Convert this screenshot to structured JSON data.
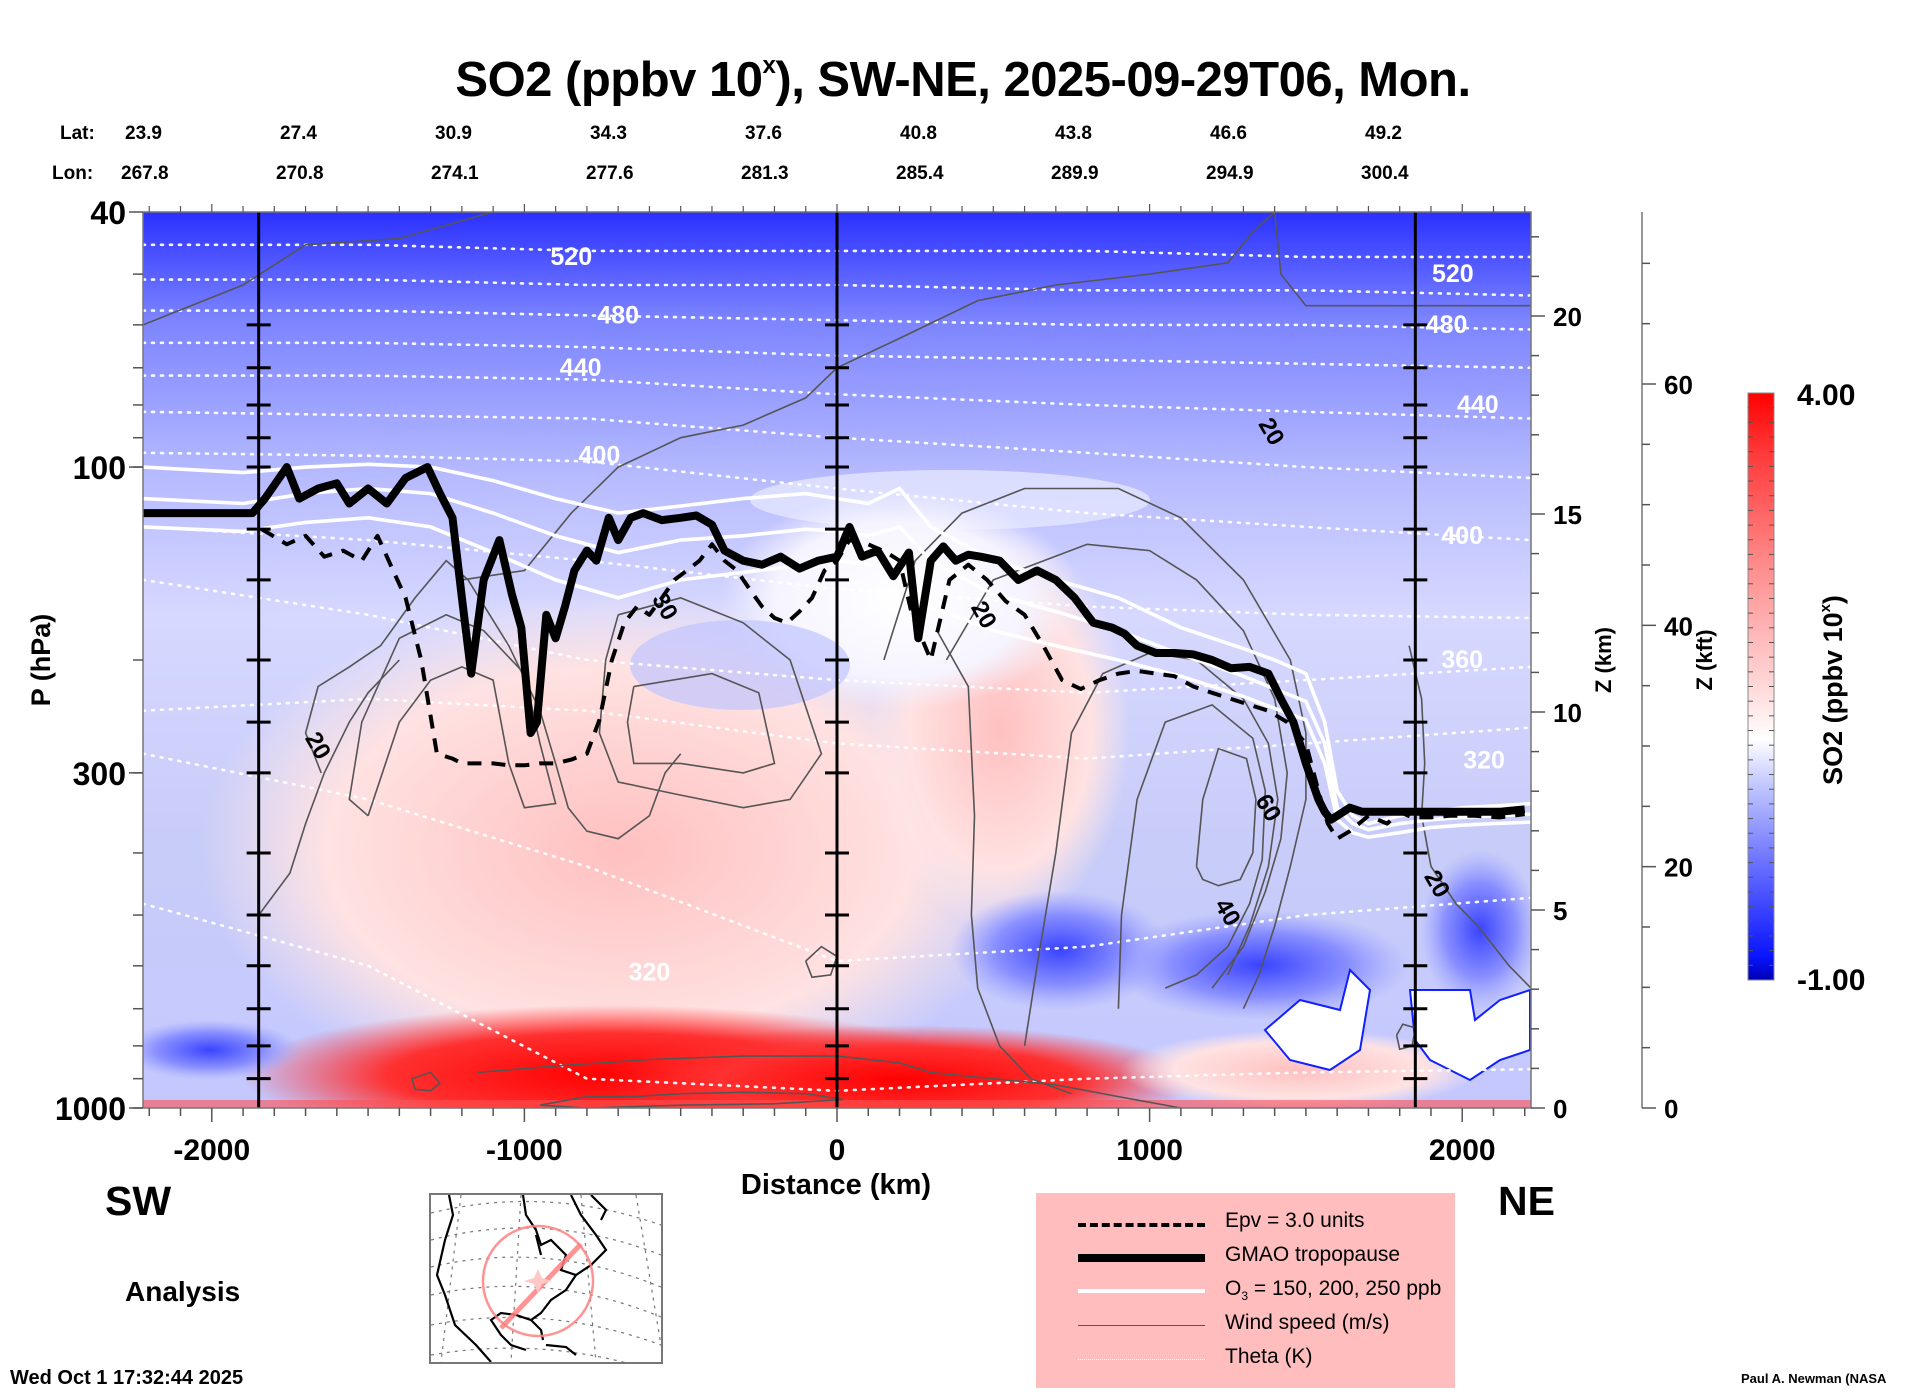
{
  "title": {
    "main": "SO2 (ppbv 10",
    "superscript": "x",
    "rest": "), SW-NE, 2025-09-29T06, Mon."
  },
  "header_rows": {
    "lat_label": "Lat:",
    "lon_label": "Lon:",
    "lat": [
      "23.9",
      "27.4",
      "30.9",
      "34.3",
      "37.6",
      "40.8",
      "43.8",
      "46.6",
      "49.2"
    ],
    "lon": [
      "267.8",
      "270.8",
      "274.1",
      "277.6",
      "281.3",
      "285.4",
      "289.9",
      "294.9",
      "300.4"
    ]
  },
  "labels": {
    "sw": "SW",
    "ne": "NE",
    "analysis": "Analysis",
    "timestamp": "Wed Oct  1 17:32:44 2025",
    "credit": "Paul A. Newman (NASA"
  },
  "legend": {
    "items": [
      {
        "label": "Epv = 3.0 units",
        "style": "dashed-thick"
      },
      {
        "label": "GMAO tropopause",
        "style": "solid-thick"
      },
      {
        "label_main": "O",
        "label_sub": "3",
        "label_rest": " = 150, 200, 250 ppb",
        "style": "white-solid"
      },
      {
        "label": "Wind speed (m/s)",
        "style": "thin-gray"
      },
      {
        "label": "Theta (K)",
        "style": "white-dotted"
      }
    ]
  },
  "colors": {
    "legend_bg": "#ffbdbd",
    "cmap_low": "#0000c8",
    "cmap_mid": "#ffffff",
    "cmap_high": "#ff0000",
    "map_track": "#ff8080"
  },
  "chart_data": {
    "type": "heatmap",
    "subtype": "vertical cross-section",
    "title": "SO2 (ppbv 10^x), SW-NE, 2025-09-29T06, Mon.",
    "xlabel": "Distance (km)",
    "ylabel": "P (hPa)",
    "ylabel_right": "Z (km)",
    "ylabel_right2": "Z (kft)",
    "xlim": [
      -2220,
      2220
    ],
    "ylim": [
      1000,
      40
    ],
    "yscale": "log",
    "x_ticks": [
      -2000,
      -1000,
      0,
      1000,
      2000
    ],
    "x_tick_labels": [
      "-2000",
      "-1000",
      "0",
      "1000",
      "2000"
    ],
    "y_ticks": [
      40,
      100,
      300,
      1000
    ],
    "y_tick_labels": [
      "40",
      "100",
      "300",
      "1000"
    ],
    "z_km_ticks": [
      0,
      5,
      10,
      15,
      20
    ],
    "z_km_tick_labels": [
      "0",
      "5",
      "10",
      "15",
      "20"
    ],
    "z_kft_ticks": [
      0,
      20,
      40,
      60
    ],
    "z_kft_tick_labels": [
      "0",
      "20",
      "40",
      "60"
    ],
    "vertical_markers_km": [
      -1850,
      0,
      1850
    ],
    "colorbar": {
      "label": "SO2 (ppbv 10^x)",
      "label_main": "SO2 (ppbv 10",
      "label_sup": "x",
      "label_end": ")",
      "min": -1.0,
      "max": 4.0,
      "min_label": "-1.00",
      "max_label": "4.00",
      "levels": 40
    },
    "field_regions": [
      {
        "desc": "upper stratosphere",
        "x": [
          -2220,
          2220
        ],
        "p": [
          40,
          90
        ],
        "value": -0.6
      },
      {
        "desc": "boundary-layer maximum",
        "x": [
          -1500,
          600
        ],
        "p": [
          850,
          1000
        ],
        "value": 3.6
      },
      {
        "desc": "mid-troposphere plume",
        "x": [
          -1100,
          300
        ],
        "p": [
          300,
          800
        ],
        "value": 2.0
      },
      {
        "desc": "NE low-level minimum",
        "x": [
          600,
          1700
        ],
        "p": [
          550,
          800
        ],
        "value": -0.7
      }
    ],
    "theta_labels": [
      {
        "value": "520",
        "x": -850,
        "p": 47
      },
      {
        "value": "480",
        "x": -700,
        "p": 58
      },
      {
        "value": "440",
        "x": -820,
        "p": 70
      },
      {
        "value": "400",
        "x": -760,
        "p": 96
      },
      {
        "value": "520",
        "x": 1970,
        "p": 50
      },
      {
        "value": "480",
        "x": 1950,
        "p": 60
      },
      {
        "value": "440",
        "x": 2050,
        "p": 80
      },
      {
        "value": "400",
        "x": 2000,
        "p": 128
      },
      {
        "value": "360",
        "x": 2000,
        "p": 200
      },
      {
        "value": "320",
        "x": 2070,
        "p": 287
      },
      {
        "value": "320",
        "x": -600,
        "p": 615
      }
    ],
    "wind_labels": [
      {
        "value": "20",
        "x": -1660,
        "p": 272
      },
      {
        "value": "20",
        "x": 1390,
        "p": 88
      },
      {
        "value": "20",
        "x": 470,
        "p": 170
      },
      {
        "value": "60",
        "x": 1380,
        "p": 340
      },
      {
        "value": "40",
        "x": 1250,
        "p": 495
      },
      {
        "value": "20",
        "x": 1920,
        "p": 447
      },
      {
        "value": "30",
        "x": -550,
        "p": 165
      }
    ],
    "tropopause": {
      "x": [
        -2220,
        -1870,
        -1830,
        -1760,
        -1720,
        -1660,
        -1600,
        -1560,
        -1500,
        -1440,
        -1380,
        -1310,
        -1270,
        -1230,
        -1200,
        -1170,
        -1130,
        -1080,
        -1040,
        -1010,
        -980,
        -960,
        -930,
        -900,
        -870,
        -840,
        -800,
        -770,
        -730,
        -700,
        -660,
        -620,
        -560,
        -500,
        -450,
        -400,
        -360,
        -300,
        -240,
        -180,
        -120,
        -60,
        0,
        40,
        80,
        130,
        180,
        230,
        260,
        300,
        340,
        380,
        420,
        460,
        520,
        580,
        640,
        700,
        760,
        820,
        880,
        920,
        960,
        1020,
        1080,
        1140,
        1200,
        1260,
        1320,
        1380,
        1420,
        1460,
        1500,
        1540,
        1560,
        1580,
        1600,
        1640,
        1680,
        1720,
        1760,
        1800,
        1850,
        1900,
        1960,
        2040,
        2120,
        2200
      ],
      "p": [
        118,
        118,
        112,
        100,
        112,
        108,
        106,
        114,
        108,
        114,
        104,
        100,
        110,
        120,
        160,
        210,
        150,
        130,
        158,
        178,
        260,
        250,
        170,
        185,
        165,
        145,
        135,
        140,
        120,
        130,
        120,
        118,
        121,
        120,
        119,
        123,
        135,
        140,
        142,
        138,
        144,
        140,
        138,
        124,
        138,
        135,
        148,
        136,
        185,
        140,
        133,
        140,
        137,
        138,
        140,
        150,
        145,
        150,
        160,
        175,
        178,
        182,
        190,
        195,
        195,
        196,
        200,
        206,
        205,
        210,
        230,
        250,
        290,
        330,
        345,
        355,
        350,
        340,
        345,
        345,
        345,
        345,
        345,
        345,
        345,
        345,
        345,
        342
      ]
    },
    "epv_3pvu": {
      "x": [
        -1840,
        -1760,
        -1700,
        -1640,
        -1580,
        -1520,
        -1470,
        -1420,
        -1380,
        -1330,
        -1280,
        -1230,
        -1200,
        -1180,
        -1160,
        -1140,
        -1100,
        -1050,
        -1000,
        -950,
        -900,
        -850,
        -800,
        -760,
        -720,
        -680,
        -640,
        -600,
        -560,
        -520,
        -480,
        -440,
        -400,
        -360,
        -320,
        -280,
        -240,
        -200,
        -160,
        -120,
        -80,
        -40,
        0,
        40,
        100,
        160,
        200,
        240,
        300,
        360,
        420,
        480,
        540,
        600,
        660,
        720,
        780,
        840,
        900,
        960,
        1020,
        1080,
        1140,
        1200,
        1260,
        1320,
        1380,
        1440,
        1500,
        1540,
        1570,
        1600,
        1640,
        1700,
        1760,
        1800,
        1840,
        1900,
        1960,
        2040,
        2120,
        2200
      ],
      "p": [
        125,
        132,
        128,
        138,
        135,
        140,
        128,
        145,
        160,
        200,
        280,
        285,
        290,
        290,
        290,
        290,
        290,
        292,
        292,
        290,
        290,
        286,
        280,
        248,
        200,
        175,
        165,
        170,
        160,
        150,
        145,
        140,
        132,
        140,
        145,
        155,
        165,
        172,
        175,
        168,
        160,
        145,
        140,
        130,
        132,
        136,
        140,
        170,
        200,
        150,
        142,
        150,
        162,
        170,
        190,
        215,
        222,
        215,
        210,
        208,
        210,
        212,
        220,
        225,
        230,
        235,
        240,
        250,
        270,
        320,
        360,
        380,
        370,
        350,
        360,
        345,
        352,
        352,
        350,
        350,
        352,
        348
      ]
    },
    "o3_contours": [
      {
        "ppb": 150,
        "x": [
          -2220,
          -1900,
          -1700,
          -1500,
          -1300,
          -1100,
          -900,
          -700,
          -500,
          -300,
          -100,
          0,
          100,
          200,
          300,
          500,
          700,
          900,
          1100,
          1300,
          1400,
          1500,
          1560,
          1600,
          1650,
          1700,
          1800,
          1900,
          2000,
          2100,
          2220
        ],
        "p": [
          100,
          102,
          100,
          99,
          100,
          105,
          112,
          118,
          115,
          112,
          110,
          112,
          114,
          108,
          124,
          140,
          150,
          160,
          178,
          192,
          200,
          210,
          250,
          320,
          350,
          360,
          350,
          345,
          340,
          338,
          335
        ]
      },
      {
        "ppb": 200,
        "x": [
          -2220,
          -1900,
          -1700,
          -1500,
          -1300,
          -1100,
          -900,
          -700,
          -500,
          -300,
          -100,
          0,
          100,
          200,
          300,
          500,
          700,
          900,
          1100,
          1300,
          1400,
          1500,
          1560,
          1600,
          1650,
          1700,
          1800,
          1900,
          2000,
          2100,
          2220
        ],
        "p": [
          112,
          114,
          110,
          108,
          110,
          118,
          128,
          136,
          130,
          128,
          125,
          126,
          128,
          124,
          140,
          158,
          168,
          180,
          196,
          212,
          222,
          232,
          270,
          340,
          360,
          368,
          360,
          355,
          352,
          350,
          348
        ]
      },
      {
        "ppb": 250,
        "x": [
          -2220,
          -1900,
          -1700,
          -1500,
          -1300,
          -1100,
          -900,
          -700,
          -500,
          -300,
          -100,
          0,
          100,
          200,
          300,
          500,
          700,
          900,
          1100,
          1300,
          1400,
          1500,
          1560,
          1600,
          1650,
          1700,
          1800,
          1900,
          2000,
          2100,
          2220
        ],
        "p": [
          124,
          126,
          122,
          120,
          124,
          136,
          150,
          160,
          150,
          146,
          142,
          140,
          142,
          145,
          165,
          180,
          190,
          200,
          212,
          228,
          238,
          248,
          290,
          355,
          372,
          378,
          372,
          365,
          362,
          360,
          358
        ]
      }
    ],
    "theta_levels_K": [
      300,
      320,
      340,
      360,
      380,
      400,
      420,
      440,
      460,
      480,
      500,
      520
    ],
    "theta_lines": [
      {
        "K": 520,
        "p_at": [
          45,
          45,
          46,
          46,
          46,
          47,
          47
        ]
      },
      {
        "K": 500,
        "p_at": [
          51,
          51,
          52,
          52,
          53,
          53,
          54
        ]
      },
      {
        "K": 480,
        "p_at": [
          57,
          57,
          58,
          59,
          60,
          60,
          61
        ]
      },
      {
        "K": 460,
        "p_at": [
          64,
          64,
          65,
          67,
          68,
          69,
          70
        ]
      },
      {
        "K": 440,
        "p_at": [
          72,
          72,
          73,
          77,
          80,
          82,
          84
        ]
      },
      {
        "K": 420,
        "p_at": [
          82,
          83,
          84,
          90,
          95,
          100,
          104
        ]
      },
      {
        "K": 400,
        "p_at": [
          95,
          96,
          98,
          108,
          118,
          124,
          130
        ]
      },
      {
        "K": 380,
        "p_at": [
          124,
          130,
          140,
          155,
          165,
          170,
          172
        ]
      },
      {
        "K": 360,
        "p_at": [
          150,
          170,
          200,
          215,
          225,
          215,
          205
        ]
      },
      {
        "K": 340,
        "p_at": [
          240,
          230,
          240,
          270,
          285,
          270,
          255
        ]
      },
      {
        "K": 320,
        "p_at": [
          280,
          330,
          420,
          590,
          560,
          500,
          470
        ]
      },
      {
        "K": 300,
        "p_at": [
          480,
          600,
          900,
          940,
          900,
          880,
          870
        ]
      }
    ],
    "theta_x_nodes": [
      -2220,
      -1500,
      -800,
      0,
      800,
      1500,
      2220
    ],
    "wind_speed_levels_ms": [
      20,
      30,
      40,
      50,
      60
    ]
  }
}
